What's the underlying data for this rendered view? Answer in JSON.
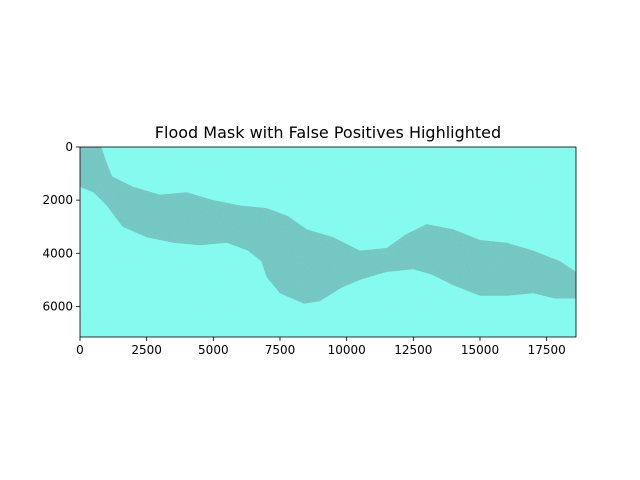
{
  "chart_data": {
    "type": "heatmap",
    "title": "Flood Mask with False Positives Highlighted",
    "xlabel": "",
    "ylabel": "",
    "xlim": [
      0,
      18600
    ],
    "ylim": [
      7150,
      0
    ],
    "x_ticks": [
      0,
      2500,
      5000,
      7500,
      10000,
      12500,
      15000,
      17500
    ],
    "y_ticks": [
      0,
      2000,
      4000,
      6000
    ],
    "x_tick_labels": [
      "0",
      "2500",
      "5000",
      "7500",
      "10000",
      "12500",
      "15000",
      "17500"
    ],
    "y_tick_labels": [
      "0",
      "2000",
      "4000",
      "6000"
    ],
    "grid": false,
    "legend": "none",
    "colors": {
      "background_class": "#84fbee",
      "flood_class": "#70b6b5"
    },
    "regions": [
      {
        "name": "flood",
        "polygon": [
          [
            0,
            0
          ],
          [
            800,
            0
          ],
          [
            1000,
            600
          ],
          [
            1200,
            1100
          ],
          [
            2000,
            1500
          ],
          [
            3000,
            1800
          ],
          [
            4000,
            1700
          ],
          [
            5000,
            2000
          ],
          [
            6000,
            2200
          ],
          [
            7000,
            2300
          ],
          [
            7800,
            2600
          ],
          [
            8500,
            3100
          ],
          [
            9500,
            3400
          ],
          [
            10500,
            3900
          ],
          [
            11500,
            3800
          ],
          [
            12200,
            3300
          ],
          [
            13000,
            2900
          ],
          [
            14000,
            3100
          ],
          [
            15000,
            3500
          ],
          [
            16000,
            3600
          ],
          [
            17000,
            3900
          ],
          [
            18000,
            4300
          ],
          [
            18600,
            4700
          ],
          [
            18600,
            5700
          ],
          [
            17800,
            5700
          ],
          [
            17000,
            5500
          ],
          [
            16000,
            5600
          ],
          [
            15000,
            5600
          ],
          [
            14000,
            5200
          ],
          [
            13200,
            4800
          ],
          [
            12500,
            4600
          ],
          [
            11500,
            4700
          ],
          [
            10500,
            5000
          ],
          [
            9800,
            5300
          ],
          [
            9000,
            5800
          ],
          [
            8400,
            5900
          ],
          [
            7500,
            5500
          ],
          [
            7000,
            4900
          ],
          [
            6800,
            4300
          ],
          [
            6300,
            3900
          ],
          [
            5500,
            3600
          ],
          [
            4500,
            3700
          ],
          [
            3500,
            3600
          ],
          [
            2500,
            3400
          ],
          [
            1600,
            3000
          ],
          [
            1000,
            2200
          ],
          [
            500,
            1700
          ],
          [
            0,
            1500
          ]
        ]
      }
    ]
  }
}
